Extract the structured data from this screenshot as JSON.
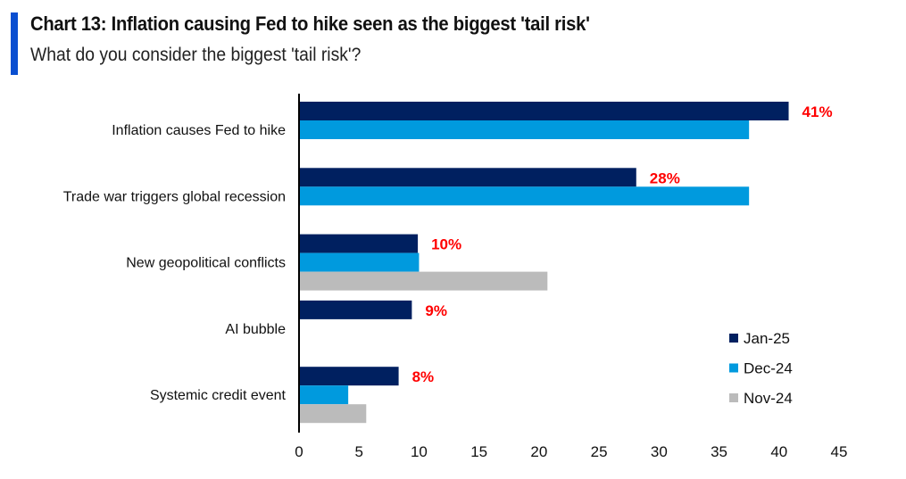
{
  "title": "Chart 13: Inflation causing Fed to hike seen as the biggest 'tail risk'",
  "subtitle": "What do you consider the biggest 'tail risk'?",
  "chart_data": {
    "type": "bar",
    "orientation": "horizontal",
    "categories": [
      "Inflation causes Fed to hike",
      "Trade war triggers global recession",
      "New geopolitical conflicts",
      "AI bubble",
      "Systemic credit event"
    ],
    "series": [
      {
        "name": "Jan-25",
        "color": "#002060",
        "values": [
          40.8,
          28.1,
          9.9,
          9.4,
          8.3
        ]
      },
      {
        "name": "Dec-24",
        "color": "#009ADE",
        "values": [
          37.5,
          37.5,
          10,
          null,
          4.1
        ]
      },
      {
        "name": "Nov-24",
        "color": "#BBBBBB",
        "values": [
          null,
          null,
          20.7,
          null,
          5.6
        ]
      }
    ],
    "data_labels": [
      "41%",
      "28%",
      "10%",
      "9%",
      "8%"
    ],
    "data_label_color": "#FF0000",
    "xlim": [
      0,
      45
    ],
    "xticks": [
      "0",
      "5",
      "10",
      "15",
      "20",
      "25",
      "30",
      "35",
      "40",
      "45"
    ],
    "grid": false,
    "legend_position": "bottom-right"
  }
}
